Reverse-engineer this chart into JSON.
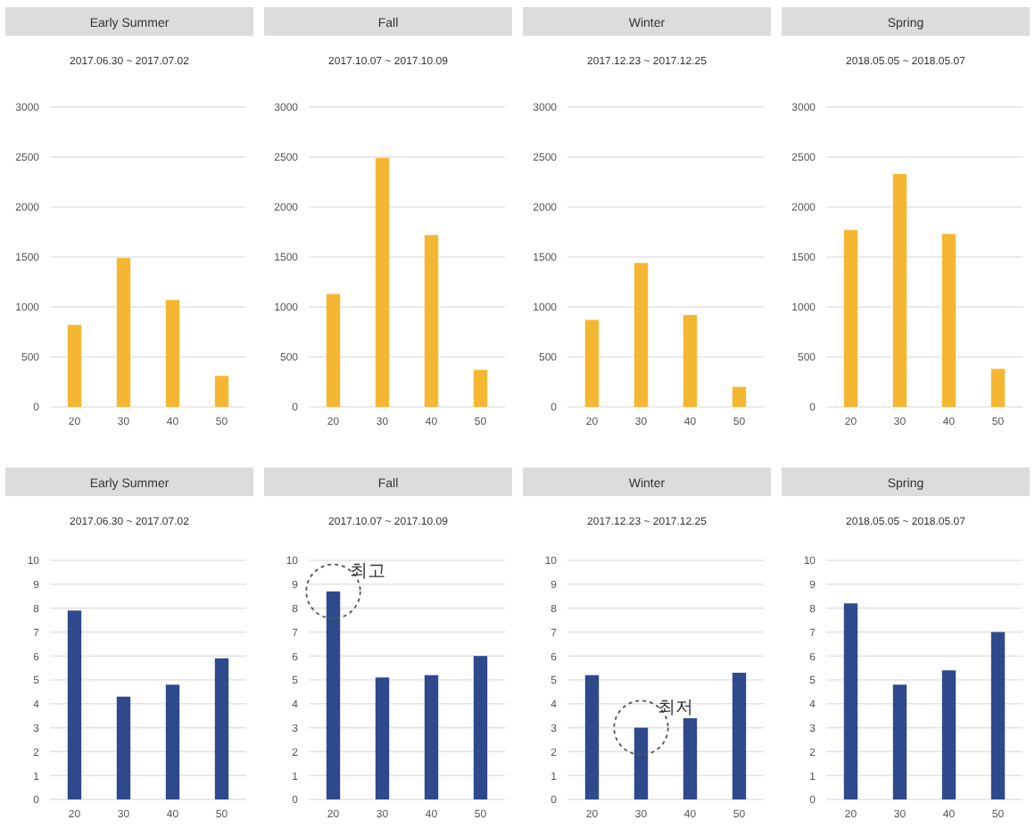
{
  "chart_data": [
    {
      "type": "bar",
      "title": "Early Summer",
      "subtitle": "2017.06.30 ~ 2017.07.02",
      "categories": [
        "20",
        "30",
        "40",
        "50"
      ],
      "values": [
        820,
        1490,
        1070,
        310
      ],
      "color": "#f5b731",
      "ylim": [
        0,
        3000
      ],
      "yticks": [
        0,
        500,
        1000,
        1500,
        2000,
        2500,
        3000
      ],
      "grid": "y"
    },
    {
      "type": "bar",
      "title": "Fall",
      "subtitle": "2017.10.07 ~ 2017.10.09",
      "categories": [
        "20",
        "30",
        "40",
        "50"
      ],
      "values": [
        1130,
        2490,
        1720,
        370
      ],
      "color": "#f5b731",
      "ylim": [
        0,
        3000
      ],
      "yticks": [
        0,
        500,
        1000,
        1500,
        2000,
        2500,
        3000
      ],
      "grid": "y"
    },
    {
      "type": "bar",
      "title": "Winter",
      "subtitle": "2017.12.23 ~ 2017.12.25",
      "categories": [
        "20",
        "30",
        "40",
        "50"
      ],
      "values": [
        870,
        1440,
        920,
        200
      ],
      "color": "#f5b731",
      "ylim": [
        0,
        3000
      ],
      "yticks": [
        0,
        500,
        1000,
        1500,
        2000,
        2500,
        3000
      ],
      "grid": "y"
    },
    {
      "type": "bar",
      "title": "Spring",
      "subtitle": "2018.05.05 ~ 2018.05.07",
      "categories": [
        "20",
        "30",
        "40",
        "50"
      ],
      "values": [
        1770,
        2330,
        1730,
        380
      ],
      "color": "#f5b731",
      "ylim": [
        0,
        3000
      ],
      "yticks": [
        0,
        500,
        1000,
        1500,
        2000,
        2500,
        3000
      ],
      "grid": "y"
    },
    {
      "type": "bar",
      "title": "Early Summer",
      "subtitle": "2017.06.30 ~ 2017.07.02",
      "categories": [
        "20",
        "30",
        "40",
        "50"
      ],
      "values": [
        7.9,
        4.3,
        4.8,
        5.9
      ],
      "color": "#2e4a8c",
      "ylim": [
        0,
        10
      ],
      "yticks": [
        0,
        1,
        2,
        3,
        4,
        5,
        6,
        7,
        8,
        9,
        10
      ],
      "grid": "y"
    },
    {
      "type": "bar",
      "title": "Fall",
      "subtitle": "2017.10.07 ~ 2017.10.09",
      "categories": [
        "20",
        "30",
        "40",
        "50"
      ],
      "values": [
        8.7,
        5.1,
        5.2,
        6.0
      ],
      "color": "#2e4a8c",
      "ylim": [
        0,
        10
      ],
      "yticks": [
        0,
        1,
        2,
        3,
        4,
        5,
        6,
        7,
        8,
        9,
        10
      ],
      "grid": "y",
      "annotations": [
        {
          "text": "최고",
          "x": "20",
          "y": 8.7
        }
      ]
    },
    {
      "type": "bar",
      "title": "Winter",
      "subtitle": "2017.12.23 ~ 2017.12.25",
      "categories": [
        "20",
        "30",
        "40",
        "50"
      ],
      "values": [
        5.2,
        3.0,
        3.4,
        5.3
      ],
      "color": "#2e4a8c",
      "ylim": [
        0,
        10
      ],
      "yticks": [
        0,
        1,
        2,
        3,
        4,
        5,
        6,
        7,
        8,
        9,
        10
      ],
      "grid": "y",
      "annotations": [
        {
          "text": "최저",
          "x": "30",
          "y": 3.0
        }
      ]
    },
    {
      "type": "bar",
      "title": "Spring",
      "subtitle": "2018.05.05 ~ 2018.05.07",
      "categories": [
        "20",
        "30",
        "40",
        "50"
      ],
      "values": [
        8.2,
        4.8,
        5.4,
        7.0
      ],
      "color": "#2e4a8c",
      "ylim": [
        0,
        10
      ],
      "yticks": [
        0,
        1,
        2,
        3,
        4,
        5,
        6,
        7,
        8,
        9,
        10
      ],
      "grid": "y"
    }
  ]
}
